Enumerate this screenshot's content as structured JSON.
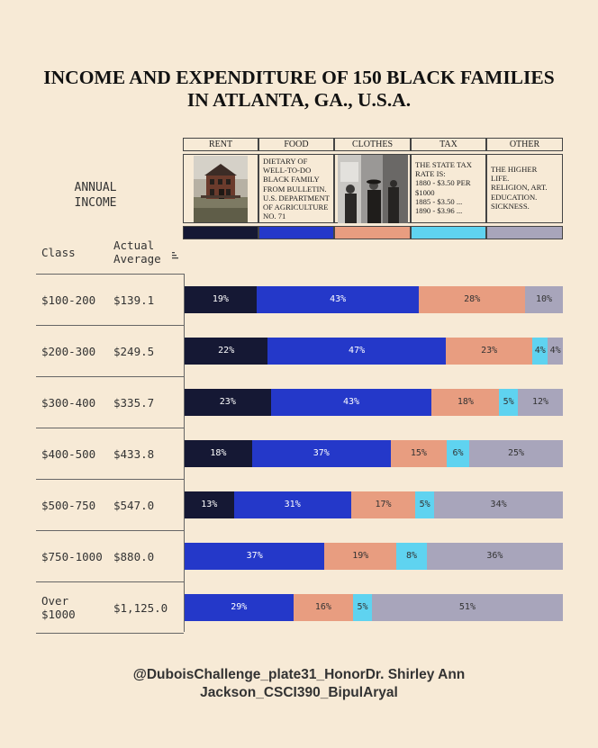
{
  "title_line1": "INCOME AND EXPENDITURE OF 150 BLACK FAMILIES",
  "title_line2": "IN ATLANTA, GA., U.S.A.",
  "annual_income_label": "ANNUAL\nINCOME",
  "col_class": "Class",
  "col_actual": "Actual\nAverage",
  "categories": [
    {
      "name": "RENT",
      "color": "#151834",
      "description": "",
      "image": "house-photo"
    },
    {
      "name": "FOOD",
      "color": "#2438c9",
      "description": "DIETARY OF\nWELL-TO-DO\nBLACK FAMILY\nFROM BULLETIN.\nU.S. DEPARTMENT\nOF AGRICULTURE\nNO. 71",
      "image": ""
    },
    {
      "name": "CLOTHES",
      "color": "#e89d80",
      "description": "",
      "image": "men-photo"
    },
    {
      "name": "TAX",
      "color": "#5fd3f0",
      "description": "THE STATE TAX\nRATE IS:\n1880 - $3.50 PER\n$1000\n1885 - $3.50 ...\n1890 - $3.96 ...",
      "image": ""
    },
    {
      "name": "OTHER",
      "color": "#a8a5bb",
      "description": "THE HIGHER\nLIFE.\nRELIGION, ART.\nEDUCATION.\nSICKNESS.",
      "image": ""
    }
  ],
  "chart_data": {
    "type": "bar",
    "orientation": "horizontal-stacked-100",
    "series_names": [
      "RENT",
      "FOOD",
      "CLOTHES",
      "TAX",
      "OTHER"
    ],
    "rows": [
      {
        "class": "$100-200",
        "average": "$139.1",
        "values": [
          19,
          43,
          28,
          0,
          10
        ]
      },
      {
        "class": "$200-300",
        "average": "$249.5",
        "values": [
          22,
          47,
          23,
          4,
          4
        ]
      },
      {
        "class": "$300-400",
        "average": "$335.7",
        "values": [
          23,
          43,
          18,
          5,
          12
        ]
      },
      {
        "class": "$400-500",
        "average": "$433.8",
        "values": [
          18,
          37,
          15,
          6,
          25
        ]
      },
      {
        "class": "$500-750",
        "average": "$547.0",
        "values": [
          13,
          31,
          17,
          5,
          34
        ]
      },
      {
        "class": "$750-1000",
        "average": "$880.0",
        "values": [
          0,
          37,
          19,
          8,
          36
        ]
      },
      {
        "class": "Over\n$1000",
        "average": "$1,125.0",
        "values": [
          0,
          29,
          16,
          5,
          51
        ]
      }
    ],
    "label_suffix": "%",
    "label_colors": [
      "#ffffff",
      "#ffffff",
      "#333333",
      "#333333",
      "#333333"
    ]
  },
  "footer": "@DuboisChallenge_plate31_HonorDr. Shirley Ann\nJackson_CSCI390_BipulAryal"
}
